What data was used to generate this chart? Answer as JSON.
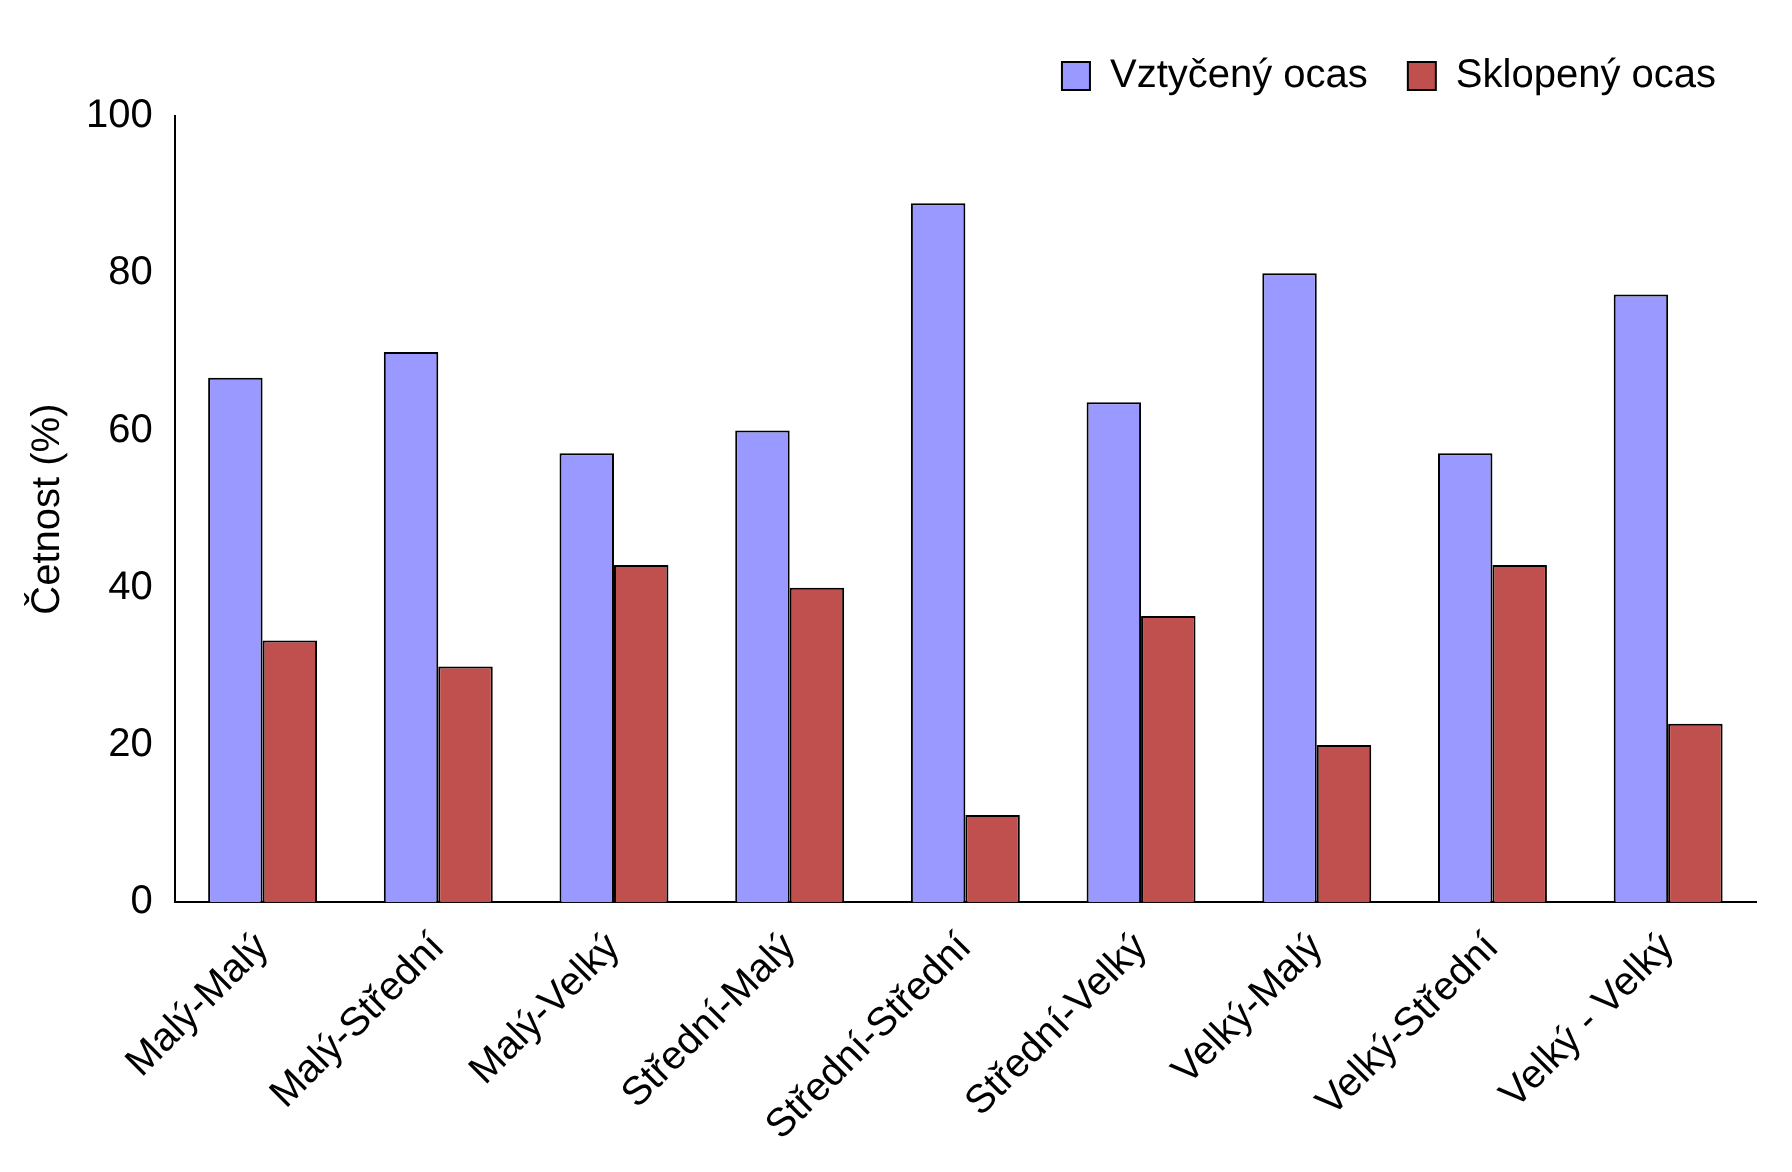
{
  "chart_data": {
    "type": "bar",
    "ylabel": "Četnost (%)",
    "categories": [
      "Malý-Malý",
      "Malý-Střední",
      "Malý-Velký",
      "Střední-Malý",
      "Střední-Střední",
      "Střední-Velký",
      "Velký-Malý",
      "Velký-Střední",
      "Velký - Velký"
    ],
    "series": [
      {
        "name": "Vztyčený ocas",
        "color": "#9999ff",
        "values": [
          66.7,
          70,
          57.1,
          60,
          88.9,
          63.6,
          80,
          57.1,
          77.3
        ]
      },
      {
        "name": "Sklopený ocas",
        "color": "#c0504d",
        "values": [
          33.3,
          30,
          42.9,
          40,
          11.1,
          36.4,
          20,
          42.9,
          22.7
        ]
      }
    ],
    "ylim": [
      0,
      100
    ],
    "yticks": [
      0,
      20,
      40,
      60,
      80,
      100
    ],
    "grid": false,
    "legend": "top"
  }
}
